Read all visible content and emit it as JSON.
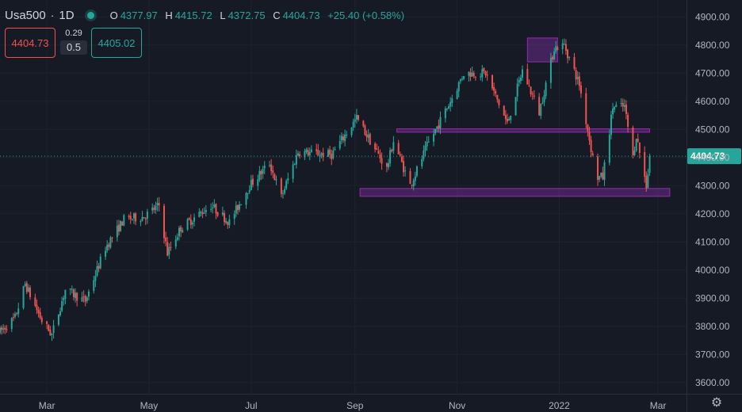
{
  "header": {
    "symbol": "Usa500",
    "separator": "·",
    "timeframe": "1D",
    "open_label": "O",
    "open": "4377.97",
    "high_label": "H",
    "high": "4415.72",
    "low_label": "L",
    "low": "4372.75",
    "close_label": "C",
    "close": "4404.73",
    "change": "+25.40 (+0.58%)"
  },
  "trade": {
    "sell": "4404.73",
    "spread_top": "0.29",
    "spread_bottom": "0.5",
    "buy": "4405.02"
  },
  "colors": {
    "background": "#161a25",
    "grid": "#1e2230",
    "up": "#26a69a",
    "down": "#ef5350",
    "zone_stroke": "#9c27b0",
    "zone_fill": "#6a2c8a",
    "price_badge": "#26a69a",
    "axis_text": "#b2b5be"
  },
  "chart_data": {
    "type": "candlestick",
    "ylim": [
      3560,
      4960
    ],
    "yticks": [
      3600,
      3700,
      3800,
      3900,
      4000,
      4100,
      4200,
      4300,
      4400,
      4500,
      4600,
      4700,
      4800,
      4900
    ],
    "ytick_labels": [
      "3600.00",
      "3700.00",
      "3800.00",
      "3900.00",
      "4000.00",
      "4100.00",
      "4200.00",
      "4300.00",
      "4400.00",
      "4500.00",
      "4600.00",
      "4700.00",
      "4800.00",
      "4900.00"
    ],
    "x_range": [
      "2021-02-01",
      "2022-03-18"
    ],
    "xticks": [
      {
        "label": "Mar",
        "date": "2021-03-01"
      },
      {
        "label": "May",
        "date": "2021-05-01"
      },
      {
        "label": "Jul",
        "date": "2021-07-01"
      },
      {
        "label": "Sep",
        "date": "2021-09-01"
      },
      {
        "label": "Nov",
        "date": "2021-11-01"
      },
      {
        "label": "2022",
        "date": "2022-01-01"
      },
      {
        "label": "Mar",
        "date": "2022-03-01"
      }
    ],
    "last_price": 4404.73,
    "last_price_label": "4404.73",
    "anchors": [
      [
        "2021-02-01",
        3780
      ],
      [
        "2021-02-10",
        3830
      ],
      [
        "2021-02-16",
        3950
      ],
      [
        "2021-02-26",
        3820
      ],
      [
        "2021-03-04",
        3770
      ],
      [
        "2021-03-12",
        3930
      ],
      [
        "2021-03-24",
        3890
      ],
      [
        "2021-04-05",
        4080
      ],
      [
        "2021-04-16",
        4180
      ],
      [
        "2021-04-28",
        4190
      ],
      [
        "2021-05-07",
        4230
      ],
      [
        "2021-05-12",
        4060
      ],
      [
        "2021-05-20",
        4150
      ],
      [
        "2021-06-07",
        4230
      ],
      [
        "2021-06-18",
        4170
      ],
      [
        "2021-06-30",
        4300
      ],
      [
        "2021-07-12",
        4380
      ],
      [
        "2021-07-19",
        4260
      ],
      [
        "2021-07-29",
        4420
      ],
      [
        "2021-08-18",
        4410
      ],
      [
        "2021-09-02",
        4540
      ],
      [
        "2021-09-10",
        4460
      ],
      [
        "2021-09-20",
        4360
      ],
      [
        "2021-09-24",
        4460
      ],
      [
        "2021-10-04",
        4300
      ],
      [
        "2021-10-14",
        4440
      ],
      [
        "2021-10-28",
        4600
      ],
      [
        "2021-11-05",
        4700
      ],
      [
        "2021-11-18",
        4700
      ],
      [
        "2021-11-26",
        4590
      ],
      [
        "2021-12-01",
        4520
      ],
      [
        "2021-12-10",
        4710
      ],
      [
        "2021-12-20",
        4560
      ],
      [
        "2021-12-29",
        4790
      ],
      [
        "2022-01-04",
        4800
      ],
      [
        "2022-01-13",
        4660
      ],
      [
        "2022-01-21",
        4400
      ],
      [
        "2022-01-24",
        4330
      ],
      [
        "2022-01-27",
        4330
      ],
      [
        "2022-02-02",
        4580
      ],
      [
        "2022-02-09",
        4580
      ],
      [
        "2022-02-14",
        4400
      ],
      [
        "2022-02-16",
        4480
      ],
      [
        "2022-02-22",
        4300
      ],
      [
        "2022-02-24",
        4400
      ]
    ],
    "zones": [
      {
        "from": "2021-12-13",
        "to": "2021-12-31",
        "low": 4740,
        "high": 4825
      },
      {
        "from": "2021-09-26",
        "to": "2022-02-24",
        "low": 4490,
        "high": 4502
      },
      {
        "from": "2021-09-04",
        "to": "2022-03-08",
        "low": 4262,
        "high": 4290
      }
    ]
  },
  "icons": {
    "settings": "gear-icon",
    "status": "status-dot-icon"
  },
  "settings_glyph": "⚙"
}
